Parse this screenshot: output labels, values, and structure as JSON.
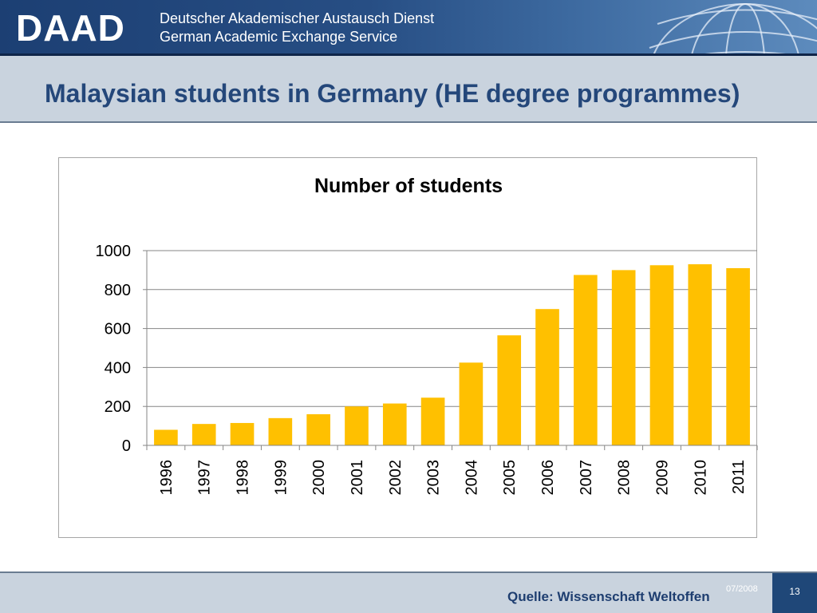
{
  "header": {
    "logo": "DAAD",
    "org_line1": "Deutscher Akademischer Austausch Dienst",
    "org_line2": "German Academic Exchange Service"
  },
  "slide": {
    "title": "Malaysian students in Germany (HE degree programmes)"
  },
  "chart_data": {
    "type": "bar",
    "title": "Number of students",
    "xlabel": "",
    "ylabel": "",
    "categories": [
      "1996",
      "1997",
      "1998",
      "1999",
      "2000",
      "2001",
      "2002",
      "2003",
      "2004",
      "2005",
      "2006",
      "2007",
      "2008",
      "2009",
      "2010",
      "2011"
    ],
    "values": [
      80,
      110,
      115,
      140,
      160,
      200,
      215,
      245,
      425,
      565,
      700,
      875,
      900,
      925,
      930,
      910
    ],
    "ylim": [
      0,
      1000
    ],
    "yticks": [
      0,
      200,
      400,
      600,
      800,
      1000
    ],
    "grid": true,
    "legend": "none",
    "bar_color": "#ffc000"
  },
  "footer": {
    "source": "Quelle: Wissenschaft Weltoffen",
    "date": "07/2008",
    "page": "13"
  }
}
